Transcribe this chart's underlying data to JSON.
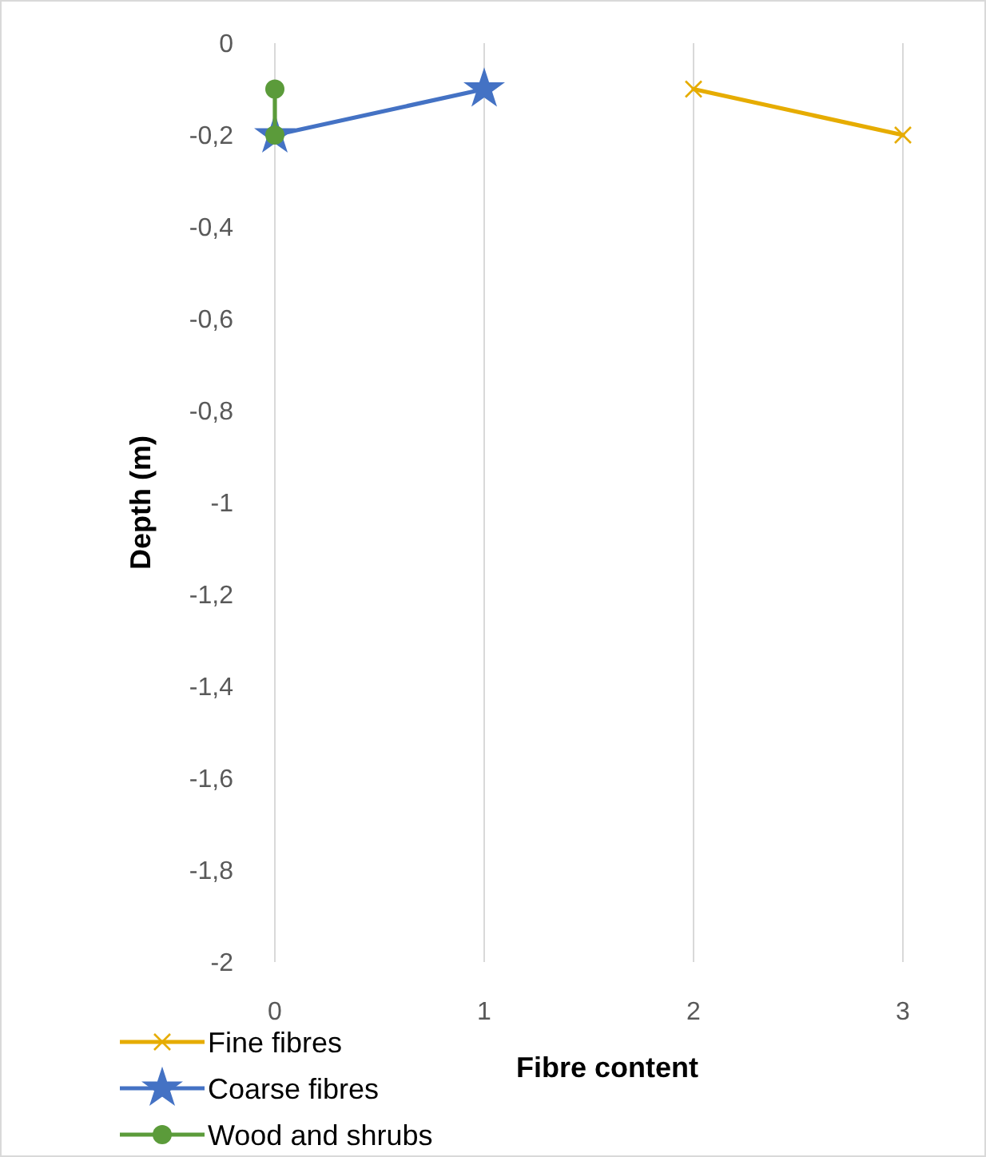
{
  "chart_data": {
    "type": "line",
    "xlabel": "Fibre content",
    "ylabel": "Depth (m)",
    "xlim": [
      0,
      3
    ],
    "xticks": [
      0,
      1,
      2,
      3
    ],
    "ylim": [
      -2,
      0
    ],
    "yticks": [
      0,
      {
        "value": -0.2,
        "label": "-0,2"
      },
      {
        "value": -0.4,
        "label": "-0,4"
      },
      {
        "value": -0.6,
        "label": "-0,6"
      },
      {
        "value": -0.8,
        "label": "-0,8"
      },
      -1,
      {
        "value": -1.2,
        "label": "-1,2"
      },
      {
        "value": -1.4,
        "label": "-1,4"
      },
      {
        "value": -1.6,
        "label": "-1,6"
      },
      {
        "value": -1.8,
        "label": "-1,8"
      },
      -2
    ],
    "grid": "x",
    "legend": "bottom left",
    "line_style": "solid",
    "series": [
      {
        "name": "Fine fibres",
        "color": "#e6ac00",
        "marker": "cross",
        "x": [
          2,
          3
        ],
        "values": [
          -0.1,
          -0.2
        ]
      },
      {
        "name": "Coarse fibres",
        "color": "#4472c4",
        "marker": "star",
        "x": [
          0,
          1
        ],
        "values": [
          -0.2,
          -0.1
        ]
      },
      {
        "name": "Wood and shrubs",
        "color": "#5b9b3a",
        "marker": "circle",
        "x": [
          0,
          0
        ],
        "values": [
          -0.1,
          -0.2
        ]
      }
    ]
  }
}
